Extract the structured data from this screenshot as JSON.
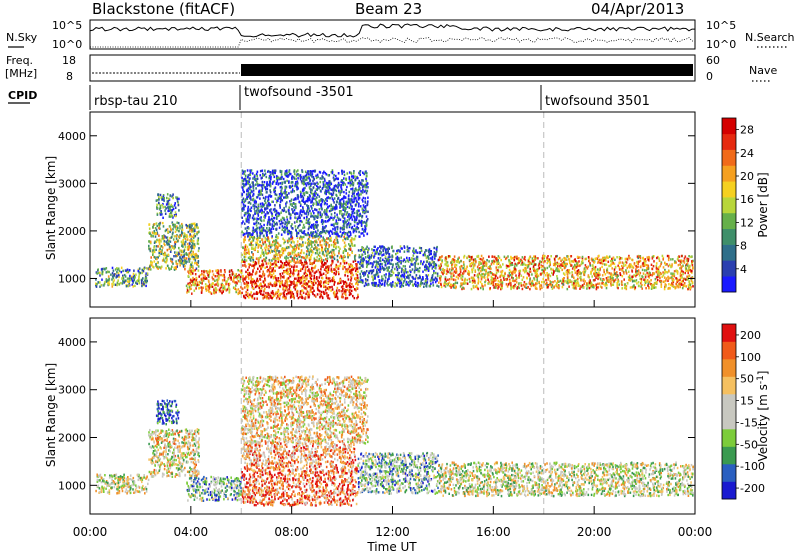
{
  "header": {
    "station": "Blackstone (fitACF)",
    "beam": "Beam 23",
    "date": "04/Apr/2013"
  },
  "noise_panel": {
    "left_label": "N.Sky",
    "left_ticks": [
      "10^5",
      "10^0"
    ],
    "right_ticks": [
      "10^5",
      "10^0"
    ],
    "right_label": "N.Search"
  },
  "freq_panel": {
    "label_line1": "Freq.",
    "label_line2": "[MHz]",
    "left_ticks": [
      18,
      8
    ],
    "right_ticks": [
      60,
      0
    ],
    "right_label": "Nave"
  },
  "cpid_panel": {
    "label": "CPID",
    "segments": [
      {
        "label": "rbsp-tau 210",
        "start_hour": 0
      },
      {
        "label": "twofsound -3501",
        "start_hour": 6
      },
      {
        "label": "twofsound 3501",
        "start_hour": 18
      }
    ]
  },
  "chart_data": [
    {
      "type": "heatmap",
      "title": "",
      "ylabel": "Slant Range [km]",
      "xlabel": "Time UT",
      "xlim": [
        0,
        24
      ],
      "ylim": [
        400,
        4500
      ],
      "y_ticks": [
        1000,
        2000,
        3000,
        4000
      ],
      "x_ticks": [
        "00:00",
        "04:00",
        "08:00",
        "12:00",
        "16:00",
        "20:00",
        "00:00"
      ],
      "colorbar": {
        "label": "Power [dB]",
        "ticks": [
          4,
          8,
          12,
          16,
          20,
          24,
          28
        ],
        "colors": [
          "#1a1aff",
          "#2a3fb0",
          "#2f6f8a",
          "#3f8f6a",
          "#66b04a",
          "#b8d63a",
          "#f5d020",
          "#f5a020",
          "#f06a1a",
          "#e62a10",
          "#d40000"
        ]
      },
      "regions": [
        {
          "t0": 0.2,
          "t1": 2.3,
          "r0": 850,
          "r1": 1250,
          "level": 0.35
        },
        {
          "t0": 2.3,
          "t1": 4.3,
          "r0": 1200,
          "r1": 2200,
          "level": 0.45
        },
        {
          "t0": 2.6,
          "t1": 3.5,
          "r0": 2300,
          "r1": 2800,
          "level": 0.25
        },
        {
          "t0": 3.8,
          "t1": 6.0,
          "r0": 700,
          "r1": 1200,
          "level": 0.7
        },
        {
          "t0": 6.0,
          "t1": 10.6,
          "r0": 600,
          "r1": 1400,
          "level": 0.85
        },
        {
          "t0": 6.0,
          "t1": 10.5,
          "r0": 1400,
          "r1": 1900,
          "level": 0.55
        },
        {
          "t0": 6.0,
          "t1": 11.0,
          "r0": 1900,
          "r1": 3300,
          "level": 0.15
        },
        {
          "t0": 10.6,
          "t1": 13.8,
          "r0": 850,
          "r1": 1700,
          "level": 0.2
        },
        {
          "t0": 13.8,
          "t1": 23.9,
          "r0": 800,
          "r1": 1500,
          "level": 0.65
        }
      ]
    },
    {
      "type": "heatmap",
      "title": "",
      "ylabel": "Slant Range [km]",
      "xlabel": "Time UT",
      "xlim": [
        0,
        24
      ],
      "ylim": [
        400,
        4500
      ],
      "y_ticks": [
        1000,
        2000,
        3000,
        4000
      ],
      "x_ticks": [
        "00:00",
        "04:00",
        "08:00",
        "12:00",
        "16:00",
        "20:00",
        "00:00"
      ],
      "colorbar": {
        "label_main": "Velocity [m s",
        "label_sup": "-1",
        "label_end": "]",
        "ticks": [
          200,
          100,
          50,
          15,
          -15,
          -50,
          -100,
          -200
        ],
        "colors": [
          "#1a1ad0",
          "#2a5fc0",
          "#3a9a50",
          "#7ccc3a",
          "#c8c8c0",
          "#c8c8c0",
          "#f5c060",
          "#f0902a",
          "#f05a1a",
          "#e01010"
        ]
      },
      "regions": [
        {
          "t0": 0.2,
          "t1": 2.3,
          "r0": 850,
          "r1": 1250,
          "level": 0.5
        },
        {
          "t0": 2.3,
          "t1": 4.3,
          "r0": 1200,
          "r1": 2200,
          "level": 0.55
        },
        {
          "t0": 2.6,
          "t1": 3.5,
          "r0": 2300,
          "r1": 2800,
          "level": 0.1
        },
        {
          "t0": 3.8,
          "t1": 6.0,
          "r0": 700,
          "r1": 1200,
          "level": 0.35
        },
        {
          "t0": 6.0,
          "t1": 10.6,
          "r0": 600,
          "r1": 1400,
          "level": 0.8
        },
        {
          "t0": 6.0,
          "t1": 10.5,
          "r0": 1400,
          "r1": 1900,
          "level": 0.7
        },
        {
          "t0": 6.0,
          "t1": 11.0,
          "r0": 1900,
          "r1": 3300,
          "level": 0.6
        },
        {
          "t0": 10.6,
          "t1": 13.8,
          "r0": 850,
          "r1": 1700,
          "level": 0.35
        },
        {
          "t0": 13.8,
          "t1": 23.9,
          "r0": 800,
          "r1": 1500,
          "level": 0.5
        }
      ]
    }
  ],
  "axes": {
    "xlabel": "Time UT"
  }
}
